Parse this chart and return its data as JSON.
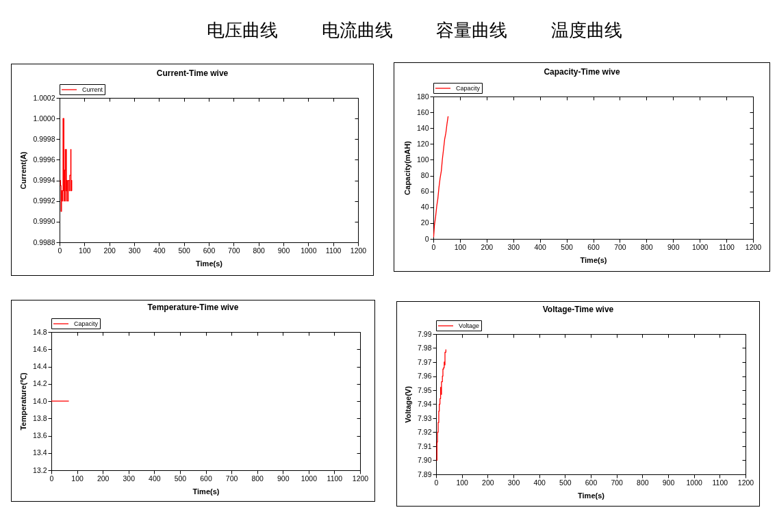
{
  "chart_data": [
    {
      "type": "other",
      "annotations": [
        "电压曲线",
        "电流曲线",
        "容量曲线",
        "温度曲线"
      ]
    },
    {
      "type": "step",
      "title": "Current-Time wive",
      "xlabel": "Time(s)",
      "ylabel": "Current(A)",
      "legend": "top left",
      "x": [
        2,
        4,
        6,
        8,
        10,
        12,
        14,
        17,
        17.5,
        20,
        21,
        23,
        25,
        26,
        27.5,
        29,
        31,
        34,
        35,
        38,
        39.5,
        41,
        43,
        45,
        46,
        48,
        49
      ],
      "series": [
        {
          "name": "Current",
          "color": "#ff0000",
          "values": [
            0.9994,
            0.99935,
            0.9991,
            0.9993,
            0.9992,
            0.9993,
            1.0,
            1.0,
            0.9992,
            0.9993,
            0.9995,
            0.9997,
            0.9992,
            0.9997,
            0.9993,
            0.9994,
            0.9992,
            0.9992,
            0.9994,
            0.9994,
            0.9993,
            0.99945,
            0.99945,
            0.9997,
            0.9993,
            0.9994,
            0.9993
          ]
        }
      ],
      "xlim": [
        0,
        1200
      ],
      "xticks": [
        0,
        100,
        200,
        300,
        400,
        500,
        600,
        700,
        800,
        900,
        1000,
        1100,
        1200
      ],
      "ylim": [
        0.9988,
        1.0002
      ],
      "yticks": [
        0.9988,
        {
          "value": 0.999,
          "label": "0.9990"
        },
        0.9992,
        0.9994,
        0.9996,
        0.9998,
        {
          "value": 1,
          "label": "1.0000"
        },
        1.0002
      ]
    },
    {
      "type": "line",
      "title": "Capacity-Time wive",
      "xlabel": "Time(s)",
      "ylabel": "Capacity(mAH)",
      "legend": "top left",
      "x": [
        1,
        4,
        8.5,
        13,
        17,
        21,
        25.5,
        30,
        34,
        38.5,
        42.5,
        47,
        51.5,
        55.5
      ],
      "series": [
        {
          "name": "Capacity",
          "color": "#ff0000",
          "values": [
            2,
            17,
            28,
            42,
            51,
            65,
            77,
            86,
            101,
            114,
            126,
            134,
            146,
            155
          ]
        }
      ],
      "xlim": [
        0,
        1200
      ],
      "xticks": [
        0,
        100,
        200,
        300,
        400,
        500,
        600,
        700,
        800,
        900,
        1000,
        1100,
        1200
      ],
      "ylim": [
        0,
        180
      ],
      "yticks": [
        0,
        20,
        40,
        60,
        80,
        100,
        120,
        140,
        160,
        180
      ]
    },
    {
      "type": "line",
      "title": "Temperature-Time wive",
      "xlabel": "Time(s)",
      "ylabel": "Temperature(℃)",
      "legend": "top left",
      "x": [
        0,
        68
      ],
      "series": [
        {
          "name": "Capacity",
          "color": "#ff0000",
          "values": [
            14.0,
            14.0
          ]
        }
      ],
      "xlim": [
        0,
        1200
      ],
      "xticks": [
        0,
        100,
        200,
        300,
        400,
        500,
        600,
        700,
        800,
        900,
        1000,
        1100,
        1200
      ],
      "ylim": [
        13.2,
        14.8
      ],
      "yticks": [
        13.2,
        13.4,
        13.6,
        13.8,
        {
          "value": 14,
          "label": "14.0"
        },
        14.2,
        14.4,
        14.6,
        14.8
      ]
    },
    {
      "type": "step",
      "title": "Voltage-Time wive",
      "xlabel": "Time(s)",
      "ylabel": "Voltage(V)",
      "legend": "top left",
      "x": [
        2,
        3.5,
        5.5,
        8,
        10.5,
        12.5,
        15,
        17.5,
        19.5,
        21,
        24.5,
        26.5,
        29,
        31.5,
        33.5,
        34.5,
        36,
        38
      ],
      "series": [
        {
          "name": "Voltage",
          "color": "#ff0000",
          "values": [
            7.9,
            7.913,
            7.92,
            7.927,
            7.935,
            7.94,
            7.944,
            7.952,
            7.947,
            7.956,
            7.96,
            7.965,
            7.966,
            7.97,
            7.968,
            7.977,
            7.977,
            7.979
          ]
        }
      ],
      "xlim": [
        0,
        1200
      ],
      "xticks": [
        0,
        100,
        200,
        300,
        400,
        500,
        600,
        700,
        800,
        900,
        1000,
        1100,
        1200
      ],
      "ylim": [
        7.89,
        7.99
      ],
      "yticks": [
        7.89,
        {
          "value": 7.9,
          "label": "7.90"
        },
        7.91,
        7.92,
        7.93,
        7.94,
        7.95,
        7.96,
        7.97,
        7.98,
        7.99
      ]
    }
  ]
}
